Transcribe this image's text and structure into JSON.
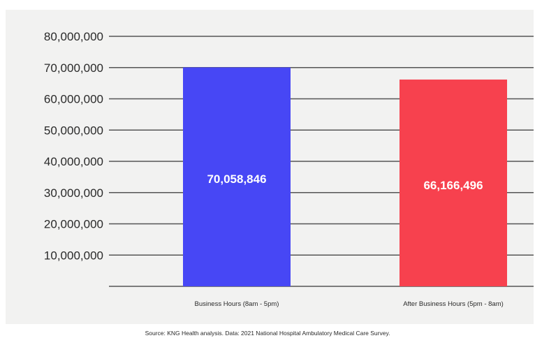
{
  "chart_data": {
    "type": "bar",
    "categories": [
      "Business Hours (8am - 5pm)",
      "After Business Hours (5pm - 8am)"
    ],
    "values": [
      70058846,
      66166496
    ],
    "data_labels": [
      "70,058,846",
      "66,166,496"
    ],
    "colors": [
      "#4747f5",
      "#f7414e"
    ],
    "ylim": [
      0,
      80000000
    ],
    "yticks": [
      10000000,
      20000000,
      30000000,
      40000000,
      50000000,
      60000000,
      70000000,
      80000000
    ],
    "ytick_labels": [
      "10,000,000",
      "20,000,000",
      "30,000,000",
      "40,000,000",
      "50,000,000",
      "60,000,000",
      "70,000,000",
      "80,000,000"
    ],
    "grid": true,
    "legend": "none"
  },
  "source": "Source: KNG Health analysis. Data: 2021 National Hospital Ambulatory Medical Care Survey."
}
